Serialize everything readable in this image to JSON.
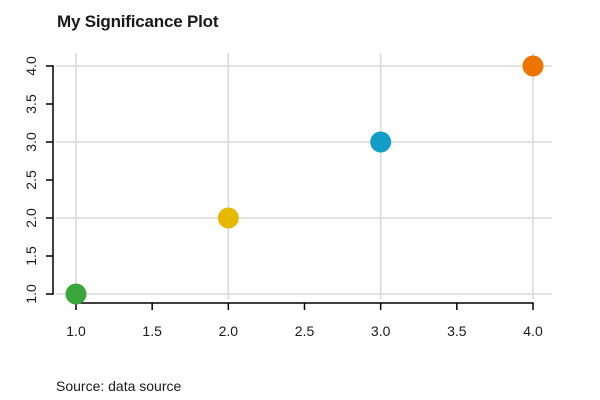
{
  "chart_data": {
    "type": "scatter",
    "title": "My Significance Plot",
    "caption": "Source: data source",
    "xlabel": "",
    "ylabel": "",
    "xlim": [
      1.0,
      4.0
    ],
    "ylim": [
      1.0,
      4.0
    ],
    "grid": "on",
    "legend_position": "none",
    "x_axis": {
      "min": 1.0,
      "max": 4.0,
      "tick_values": [
        1.0,
        1.5,
        2.0,
        2.5,
        3.0,
        3.5,
        4.0
      ],
      "tick_labels": [
        "1.0",
        "1.5",
        "2.0",
        "2.5",
        "3.0",
        "3.5",
        "4.0"
      ]
    },
    "y_axis": {
      "min": 1.0,
      "max": 4.0,
      "tick_values": [
        1.0,
        1.5,
        2.0,
        2.5,
        3.0,
        3.5,
        4.0
      ],
      "tick_labels": [
        "1.0",
        "1.5",
        "2.0",
        "2.5",
        "3.0",
        "3.5",
        "4.0"
      ],
      "label_rotation_deg": -90
    },
    "gridlines": {
      "x": [
        1,
        2,
        3,
        4
      ],
      "y": [
        1,
        2,
        3,
        4
      ]
    },
    "points": [
      {
        "x": 1,
        "y": 1,
        "color": "#39A53A",
        "color_name": "green"
      },
      {
        "x": 2,
        "y": 2,
        "color": "#E7B800",
        "color_name": "gold"
      },
      {
        "x": 3,
        "y": 3,
        "color": "#119DC6",
        "color_name": "teal-blue"
      },
      {
        "x": 4,
        "y": 4,
        "color": "#EE7600",
        "color_name": "orange"
      }
    ],
    "marker_diameter_px": 21,
    "colors": {
      "grid": "#D9D9D9",
      "axis": "#000000",
      "text": "#1a1a1a",
      "background": "#FFFFFF"
    }
  }
}
